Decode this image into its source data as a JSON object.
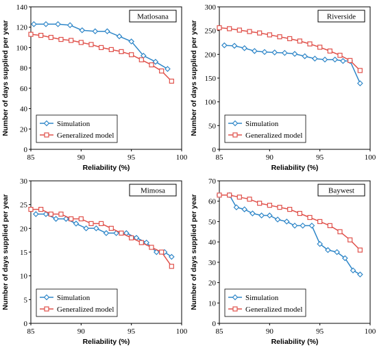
{
  "figure": {
    "panels": [
      "Matlosana",
      "Riverside",
      "Mimosa",
      "Baywest"
    ]
  },
  "chart_data": [
    {
      "type": "line",
      "title": "Matlosana",
      "xlabel": "Reliability (%)",
      "ylabel": "Number of days supplied per year",
      "xlim": [
        85,
        100
      ],
      "ylim": [
        0,
        140
      ],
      "xticks": [
        85,
        90,
        95,
        100
      ],
      "yticks": [
        0,
        20,
        40,
        60,
        80,
        100,
        120,
        140
      ],
      "legend": "bottom-left",
      "series": [
        {
          "name": "Simulation",
          "color": "#2e86c8",
          "marker": "diamond",
          "x": [
            85.3,
            86.5,
            87.7,
            88.9,
            90.1,
            91.4,
            92.6,
            93.8,
            95.0,
            96.2,
            97.4,
            98.6
          ],
          "y": [
            123,
            123,
            123,
            122,
            117,
            116,
            116,
            111,
            106,
            92,
            86,
            79
          ]
        },
        {
          "name": "Generalized model",
          "color": "#e0504a",
          "marker": "square",
          "x": [
            85.0,
            86.0,
            87.0,
            88.0,
            89.0,
            90.0,
            91.0,
            92.0,
            93.0,
            94.0,
            95.0,
            96.0,
            97.0,
            98.0,
            99.0
          ],
          "y": [
            113,
            112,
            110,
            108,
            107,
            105,
            103,
            100,
            98,
            96,
            93,
            88,
            83,
            77,
            67
          ]
        }
      ]
    },
    {
      "type": "line",
      "title": "Riverside",
      "xlabel": "Reliability (%)",
      "ylabel": "Number of days supplied per year",
      "xlim": [
        85,
        100
      ],
      "ylim": [
        0,
        300
      ],
      "xticks": [
        85,
        90,
        95,
        100
      ],
      "yticks": [
        0,
        50,
        100,
        150,
        200,
        250,
        300
      ],
      "legend": "bottom-left",
      "series": [
        {
          "name": "Simulation",
          "color": "#2e86c8",
          "marker": "diamond",
          "x": [
            85.5,
            86.5,
            87.5,
            88.5,
            89.5,
            90.5,
            91.5,
            92.5,
            93.5,
            94.5,
            95.5,
            96.5,
            97.3,
            98.0,
            99.0
          ],
          "y": [
            219,
            218,
            213,
            207,
            205,
            204,
            203,
            201,
            196,
            191,
            189,
            189,
            186,
            186,
            139
          ]
        },
        {
          "name": "Generalized model",
          "color": "#e0504a",
          "marker": "square",
          "x": [
            85.0,
            86.0,
            87.0,
            88.0,
            89.0,
            90.0,
            91.0,
            92.0,
            93.0,
            94.0,
            95.0,
            96.0,
            97.0,
            98.0,
            99.0
          ],
          "y": [
            256,
            254,
            251,
            248,
            245,
            241,
            237,
            233,
            228,
            222,
            215,
            207,
            198,
            187,
            166
          ]
        }
      ]
    },
    {
      "type": "line",
      "title": "Mimosa",
      "xlabel": "Reliability (%)",
      "ylabel": "Number of days supplied per year",
      "xlim": [
        85,
        100
      ],
      "ylim": [
        0,
        30
      ],
      "xticks": [
        85,
        90,
        95,
        100
      ],
      "yticks": [
        0,
        5,
        10,
        15,
        20,
        25,
        30
      ],
      "legend": "bottom-left",
      "series": [
        {
          "name": "Simulation",
          "color": "#2e86c8",
          "marker": "diamond",
          "x": [
            85.5,
            86.5,
            87.5,
            88.5,
            89.5,
            90.5,
            91.5,
            92.5,
            93.5,
            94.5,
            95.5,
            96.5,
            97.5,
            98.3,
            99.0
          ],
          "y": [
            23,
            23,
            22,
            22,
            21,
            20,
            20,
            19,
            19,
            19,
            18,
            17,
            15,
            15,
            14
          ]
        },
        {
          "name": "Generalized model",
          "color": "#e0504a",
          "marker": "square",
          "x": [
            85.0,
            86.0,
            87.0,
            88.0,
            89.0,
            90.0,
            91.0,
            92.0,
            93.0,
            94.0,
            95.0,
            96.0,
            97.0,
            98.0,
            99.0
          ],
          "y": [
            24,
            24,
            23,
            23,
            22,
            22,
            21,
            21,
            20,
            19,
            18,
            17,
            16,
            15,
            12
          ]
        }
      ]
    },
    {
      "type": "line",
      "title": "Baywest",
      "xlabel": "Reliability (%)",
      "ylabel": "Number of days supplied per year",
      "xlim": [
        85,
        100
      ],
      "ylim": [
        0,
        70
      ],
      "xticks": [
        85,
        90,
        95,
        100
      ],
      "yticks": [
        0,
        10,
        20,
        30,
        40,
        50,
        60,
        70
      ],
      "legend": "bottom-left",
      "series": [
        {
          "name": "Simulation",
          "color": "#2e86c8",
          "marker": "diamond",
          "x": [
            85.0,
            86.0,
            86.7,
            87.5,
            88.3,
            89.2,
            90.0,
            90.8,
            91.7,
            92.5,
            93.3,
            94.2,
            95.0,
            95.8,
            96.7,
            97.5,
            98.3,
            99.0
          ],
          "y": [
            63,
            63,
            57,
            56,
            54,
            53,
            53,
            51,
            50,
            48,
            48,
            48,
            39,
            36,
            35,
            32,
            26,
            24
          ]
        },
        {
          "name": "Generalized model",
          "color": "#e0504a",
          "marker": "square",
          "x": [
            85.0,
            86.0,
            87.0,
            88.0,
            89.0,
            90.0,
            91.0,
            92.0,
            93.0,
            94.0,
            95.0,
            96.0,
            97.0,
            98.0,
            99.0
          ],
          "y": [
            63,
            63,
            62,
            61,
            59,
            58,
            57,
            56,
            54,
            52,
            50,
            48,
            45,
            41,
            36
          ]
        }
      ]
    }
  ]
}
